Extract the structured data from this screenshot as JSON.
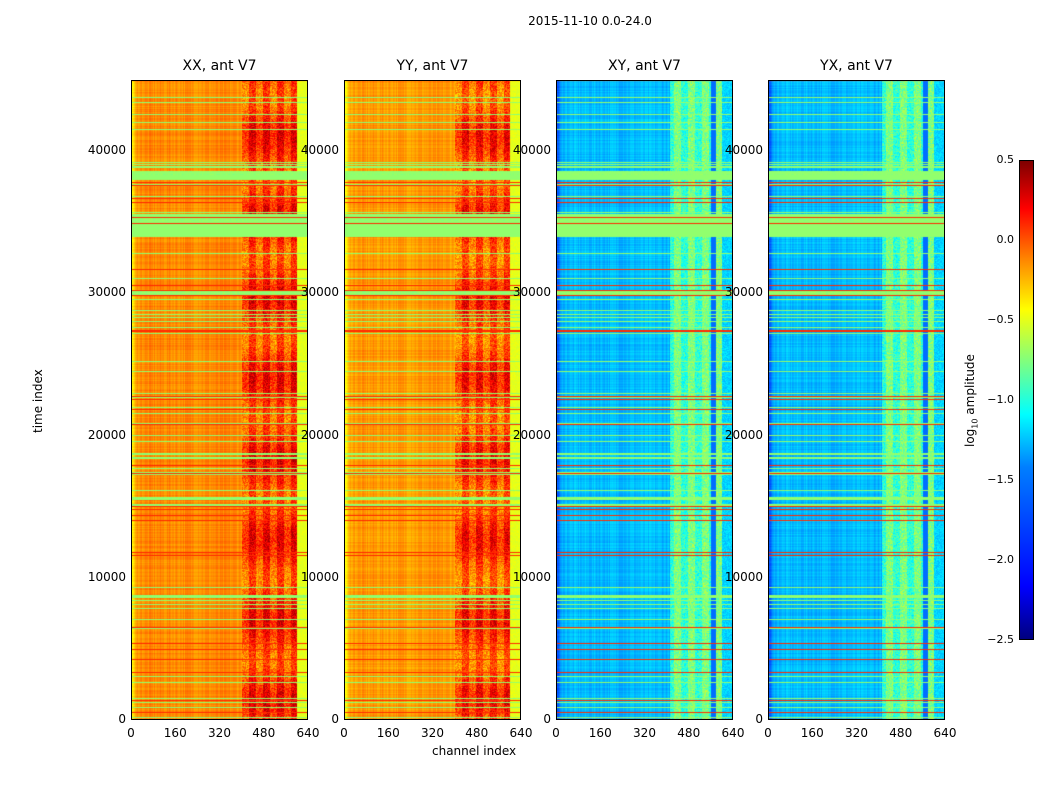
{
  "chart_data": {
    "type": "heatmap",
    "title": "2015-11-10 0.0-24.0",
    "xlabel": "channel index",
    "ylabel": "time index",
    "xlim": [
      0,
      640
    ],
    "ylim": [
      0,
      45000
    ],
    "xticks": [
      "0",
      "160",
      "320",
      "480",
      "640"
    ],
    "yticks": [
      "0",
      "10000",
      "20000",
      "30000",
      "40000"
    ],
    "panels": [
      {
        "title": "XX, ant V7",
        "base": -0.4,
        "band_channels": [
          400,
          600
        ],
        "band_level": 0.1
      },
      {
        "title": "YY, ant V7",
        "base": -0.45,
        "band_channels": [
          400,
          600
        ],
        "band_level": 0.05
      },
      {
        "title": "XY, ant V7",
        "base": -1.7,
        "band_channels": [
          410,
          600
        ],
        "band_level": -1.0
      },
      {
        "title": "YX, ant V7",
        "base": -1.7,
        "band_channels": [
          410,
          600
        ],
        "band_level": -1.0
      }
    ],
    "colorbar": {
      "label_prefix": "log",
      "label_sub": "10",
      "label_suffix": " amplitude",
      "range": [
        -2.5,
        0.5
      ],
      "ticks": [
        "0.5",
        "0.0",
        "−0.5",
        "−1.0",
        "−1.5",
        "−2.0",
        "−2.5"
      ],
      "colormap": "jet"
    }
  }
}
